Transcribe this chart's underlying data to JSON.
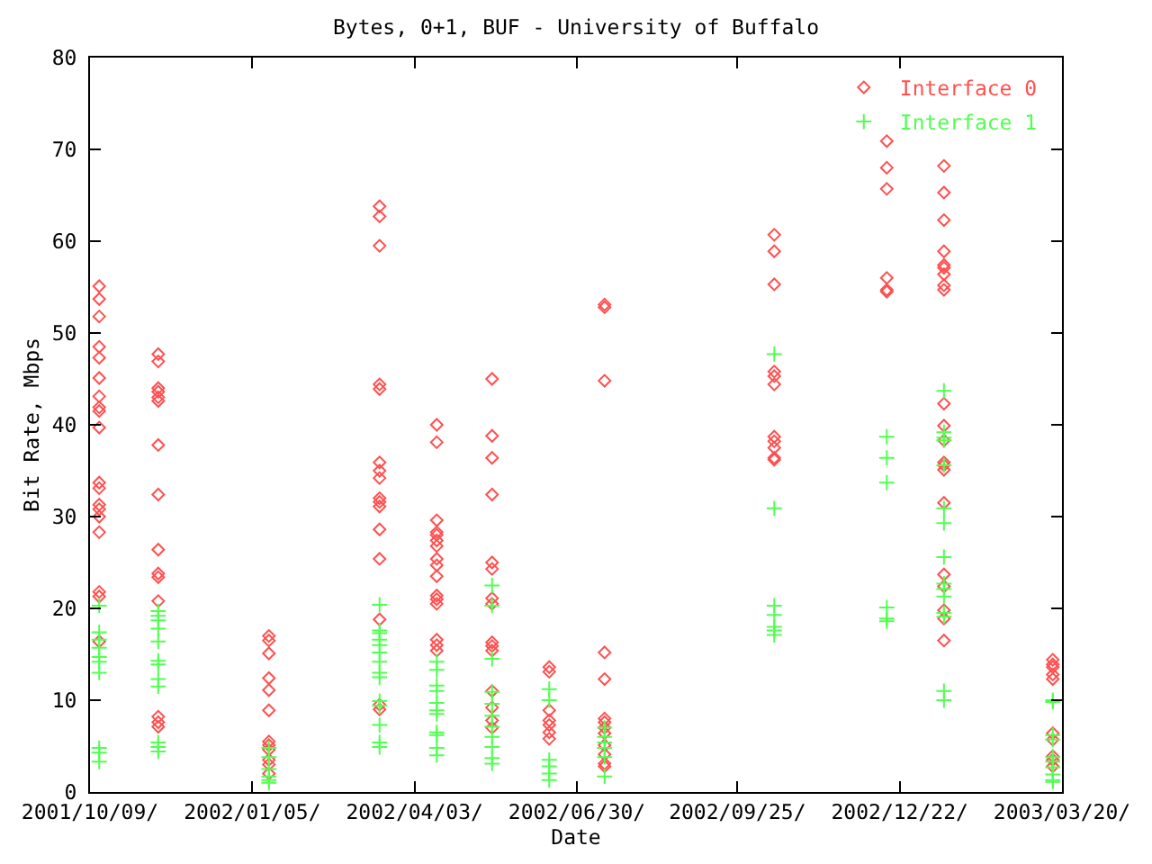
{
  "chart_data": {
    "type": "scatter",
    "title": "Bytes, 0+1, BUF - University of Buffalo",
    "xlabel": "Date",
    "ylabel": "Bit Rate, Mbps",
    "xlim": [
      "2001-10-09",
      "2003-03-20"
    ],
    "xticks": [
      {
        "value": "2001-10-09",
        "label": "2001/10/09/"
      },
      {
        "value": "2002-01-05",
        "label": "2002/01/05/"
      },
      {
        "value": "2002-04-03",
        "label": "2002/04/03/"
      },
      {
        "value": "2002-06-30",
        "label": "2002/06/30/"
      },
      {
        "value": "2002-09-25",
        "label": "2002/09/25/"
      },
      {
        "value": "2002-12-22",
        "label": "2002/12/22/"
      },
      {
        "value": "2003-03-20",
        "label": "2003/03/20/"
      }
    ],
    "ylim": [
      0,
      80
    ],
    "yticks": [
      0,
      10,
      20,
      30,
      40,
      50,
      60,
      70,
      80
    ],
    "grid": false,
    "legend": "top right",
    "series": [
      {
        "name": "Interface 0",
        "color": "#ff5050",
        "marker": "diamond",
        "x": [
          "2001-10-14",
          "2001-10-14",
          "2001-10-14",
          "2001-10-14",
          "2001-10-14",
          "2001-10-14",
          "2001-10-14",
          "2001-10-14",
          "2001-10-14",
          "2001-10-14",
          "2001-10-14",
          "2001-10-14",
          "2001-10-14",
          "2001-10-14",
          "2001-10-14",
          "2001-10-14",
          "2001-10-14",
          "2001-10-14",
          "2001-10-14",
          "2001-11-15",
          "2001-11-15",
          "2001-11-15",
          "2001-11-15",
          "2001-11-15",
          "2001-11-15",
          "2001-11-15",
          "2001-11-15",
          "2001-11-15",
          "2001-11-15",
          "2001-11-15",
          "2001-11-15",
          "2001-11-15",
          "2001-11-15",
          "2001-11-15",
          "2002-01-14",
          "2002-01-14",
          "2002-01-14",
          "2002-01-14",
          "2002-01-14",
          "2002-01-14",
          "2002-01-14",
          "2002-01-14",
          "2002-01-14",
          "2002-01-14",
          "2002-01-14",
          "2002-01-14",
          "2002-03-15",
          "2002-03-15",
          "2002-03-15",
          "2002-03-15",
          "2002-03-15",
          "2002-03-15",
          "2002-03-15",
          "2002-03-15",
          "2002-03-15",
          "2002-03-15",
          "2002-03-15",
          "2002-03-15",
          "2002-03-15",
          "2002-03-15",
          "2002-03-15",
          "2002-03-15",
          "2002-04-15",
          "2002-04-15",
          "2002-04-15",
          "2002-04-15",
          "2002-04-15",
          "2002-04-15",
          "2002-04-15",
          "2002-04-15",
          "2002-04-15",
          "2002-04-15",
          "2002-04-15",
          "2002-04-15",
          "2002-04-15",
          "2002-04-15",
          "2002-04-15",
          "2002-04-15",
          "2002-05-15",
          "2002-05-15",
          "2002-05-15",
          "2002-05-15",
          "2002-05-15",
          "2002-05-15",
          "2002-05-15",
          "2002-05-15",
          "2002-05-15",
          "2002-05-15",
          "2002-05-15",
          "2002-05-15",
          "2002-05-15",
          "2002-05-15",
          "2002-05-15",
          "2002-06-15",
          "2002-06-15",
          "2002-06-15",
          "2002-06-15",
          "2002-06-15",
          "2002-06-15",
          "2002-06-15",
          "2002-07-15",
          "2002-07-15",
          "2002-07-15",
          "2002-07-15",
          "2002-07-15",
          "2002-07-15",
          "2002-07-15",
          "2002-07-15",
          "2002-07-15",
          "2002-07-15",
          "2002-07-15",
          "2002-07-15",
          "2002-07-15",
          "2002-10-15",
          "2002-10-15",
          "2002-10-15",
          "2002-10-15",
          "2002-10-15",
          "2002-10-15",
          "2002-10-15",
          "2002-10-15",
          "2002-10-15",
          "2002-10-15",
          "2002-10-15",
          "2002-12-15",
          "2002-12-15",
          "2002-12-15",
          "2002-12-15",
          "2002-12-15",
          "2002-12-15",
          "2003-01-15",
          "2003-01-15",
          "2003-01-15",
          "2003-01-15",
          "2003-01-15",
          "2003-01-15",
          "2003-01-15",
          "2003-01-15",
          "2003-01-15",
          "2003-01-15",
          "2003-01-15",
          "2003-01-15",
          "2003-01-15",
          "2003-01-15",
          "2003-01-15",
          "2003-01-15",
          "2003-01-15",
          "2003-01-15",
          "2003-01-15",
          "2003-01-15",
          "2003-01-15",
          "2003-03-15",
          "2003-03-15",
          "2003-03-15",
          "2003-03-15",
          "2003-03-15",
          "2003-03-15",
          "2003-03-15",
          "2003-03-15",
          "2003-03-15",
          "2003-03-15"
        ],
        "values": [
          55.1,
          53.7,
          51.8,
          48.5,
          47.3,
          45.1,
          43.1,
          41.9,
          41.5,
          39.7,
          33.7,
          33.1,
          31.3,
          30.8,
          30.0,
          28.3,
          21.8,
          21.3,
          16.4,
          47.7,
          46.9,
          44.0,
          43.6,
          43.0,
          42.6,
          37.8,
          32.4,
          26.4,
          23.8,
          23.4,
          20.8,
          8.2,
          7.6,
          7.1,
          17.0,
          16.5,
          15.1,
          12.4,
          11.1,
          8.9,
          5.5,
          5.1,
          4.6,
          3.5,
          3.0,
          2.0,
          63.8,
          62.7,
          59.5,
          44.4,
          43.9,
          35.9,
          35.0,
          34.2,
          32.0,
          31.6,
          31.1,
          28.6,
          25.4,
          18.8,
          9.5,
          9.0,
          40.0,
          38.1,
          29.6,
          28.3,
          28.0,
          27.4,
          26.8,
          25.4,
          24.7,
          23.5,
          21.4,
          21.0,
          20.5,
          16.6,
          16.0,
          15.4,
          45.0,
          38.8,
          36.4,
          32.4,
          25.0,
          24.3,
          21.1,
          20.5,
          16.3,
          15.9,
          15.4,
          11.0,
          9.2,
          7.8,
          7.0,
          13.6,
          13.1,
          8.9,
          7.8,
          7.3,
          6.5,
          5.8,
          53.1,
          52.8,
          44.8,
          15.2,
          12.3,
          8.0,
          7.6,
          7.0,
          6.4,
          5.1,
          4.1,
          3.1,
          2.8,
          60.7,
          58.9,
          55.3,
          45.8,
          45.3,
          44.4,
          38.7,
          38.2,
          37.5,
          36.4,
          36.2,
          70.9,
          68.0,
          65.7,
          56.0,
          54.7,
          54.5,
          68.2,
          65.3,
          62.3,
          58.9,
          57.4,
          57.1,
          56.4,
          55.2,
          54.7,
          42.3,
          39.9,
          38.3,
          35.9,
          35.6,
          35.1,
          31.5,
          23.7,
          22.4,
          19.8,
          18.9,
          16.5,
          14.4,
          13.9,
          13.6,
          12.8,
          12.3,
          6.4,
          5.7,
          3.9,
          3.5,
          2.8
        ]
      },
      {
        "name": "Interface 1",
        "color": "#50ff50",
        "marker": "cross",
        "x": [
          "2001-10-14",
          "2001-10-14",
          "2001-10-14",
          "2001-10-14",
          "2001-10-14",
          "2001-10-14",
          "2001-10-14",
          "2001-10-14",
          "2001-10-14",
          "2001-10-14",
          "2001-11-15",
          "2001-11-15",
          "2001-11-15",
          "2001-11-15",
          "2001-11-15",
          "2001-11-15",
          "2001-11-15",
          "2001-11-15",
          "2001-11-15",
          "2001-11-15",
          "2001-11-15",
          "2001-11-15",
          "2002-01-14",
          "2002-01-14",
          "2002-01-14",
          "2002-01-14",
          "2002-01-14",
          "2002-01-14",
          "2002-03-15",
          "2002-03-15",
          "2002-03-15",
          "2002-03-15",
          "2002-03-15",
          "2002-03-15",
          "2002-03-15",
          "2002-03-15",
          "2002-03-15",
          "2002-03-15",
          "2002-03-15",
          "2002-03-15",
          "2002-03-15",
          "2002-03-15",
          "2002-04-15",
          "2002-04-15",
          "2002-04-15",
          "2002-04-15",
          "2002-04-15",
          "2002-04-15",
          "2002-04-15",
          "2002-04-15",
          "2002-04-15",
          "2002-04-15",
          "2002-04-15",
          "2002-05-15",
          "2002-05-15",
          "2002-05-15",
          "2002-05-15",
          "2002-05-15",
          "2002-05-15",
          "2002-05-15",
          "2002-05-15",
          "2002-05-15",
          "2002-05-15",
          "2002-05-15",
          "2002-06-15",
          "2002-06-15",
          "2002-06-15",
          "2002-06-15",
          "2002-06-15",
          "2002-06-15",
          "2002-07-15",
          "2002-07-15",
          "2002-07-15",
          "2002-07-15",
          "2002-07-15",
          "2002-07-15",
          "2002-10-15",
          "2002-10-15",
          "2002-10-15",
          "2002-10-15",
          "2002-10-15",
          "2002-10-15",
          "2002-10-15",
          "2002-12-15",
          "2002-12-15",
          "2002-12-15",
          "2002-12-15",
          "2002-12-15",
          "2002-12-15",
          "2003-01-15",
          "2003-01-15",
          "2003-01-15",
          "2003-01-15",
          "2003-01-15",
          "2003-01-15",
          "2003-01-15",
          "2003-01-15",
          "2003-01-15",
          "2003-01-15",
          "2003-01-15",
          "2003-01-15",
          "2003-01-15",
          "2003-01-15",
          "2003-01-15",
          "2003-03-15",
          "2003-03-15",
          "2003-03-15",
          "2003-03-15",
          "2003-03-15",
          "2003-03-15",
          "2003-03-15",
          "2003-03-15",
          "2003-03-15",
          "2003-03-15"
        ],
        "values": [
          20.3,
          17.4,
          16.6,
          15.7,
          14.7,
          14.2,
          13.0,
          4.8,
          4.3,
          3.3,
          19.7,
          19.2,
          18.7,
          17.8,
          16.4,
          14.3,
          13.9,
          12.3,
          11.5,
          5.4,
          4.9,
          4.4,
          4.8,
          3.8,
          2.5,
          1.7,
          1.3,
          1.0,
          20.4,
          17.6,
          17.3,
          16.6,
          16.0,
          15.2,
          14.2,
          13.0,
          12.5,
          9.9,
          9.4,
          7.3,
          5.4,
          4.9,
          14.2,
          13.3,
          11.6,
          11.0,
          9.7,
          8.9,
          8.5,
          6.5,
          6.2,
          4.8,
          4.0,
          22.5,
          20.3,
          14.5,
          10.9,
          9.6,
          8.3,
          7.1,
          6.0,
          4.9,
          3.7,
          3.1,
          11.2,
          10.0,
          3.5,
          2.8,
          2.0,
          1.3,
          7.0,
          6.0,
          5.4,
          4.8,
          3.8,
          1.7,
          47.7,
          30.9,
          20.3,
          19.3,
          18.0,
          17.6,
          17.1,
          38.7,
          36.4,
          33.7,
          20.1,
          18.9,
          18.6,
          43.7,
          39.2,
          38.6,
          38.3,
          35.6,
          30.9,
          29.3,
          25.6,
          22.7,
          22.1,
          21.3,
          19.5,
          19.1,
          11.0,
          10.0,
          10.0,
          9.8,
          6.2,
          5.7,
          3.8,
          3.3,
          2.7,
          1.9,
          1.3,
          1.1
        ]
      }
    ]
  }
}
